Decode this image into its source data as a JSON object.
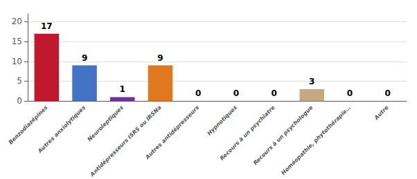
{
  "chart_data": {
    "type": "bar",
    "categories": [
      "Benzodiazépines",
      "Autres anxiolytiques",
      "Neuroleptiques",
      "Antidépresseurs ISRS ou IRSNa",
      "Autres antidépresseurs",
      "Hypnotiques",
      "Recours à un psychiatre",
      "Recours à un psychologue",
      "Homéopathie, phytothérapie…",
      "Autre"
    ],
    "values": [
      17,
      9,
      1,
      9,
      0,
      0,
      0,
      3,
      0,
      0
    ],
    "colors": [
      "#c0182c",
      "#4472c4",
      "#7030a0",
      "#e07820",
      "#4f6228",
      "#6b7a2a",
      "#1f3864",
      "#c8a882",
      "#595959",
      "#3a5fa0"
    ],
    "ylim": [
      0,
      22
    ],
    "yticks": [
      0,
      5,
      10,
      15,
      20
    ],
    "grid": true,
    "data_labels": true
  }
}
